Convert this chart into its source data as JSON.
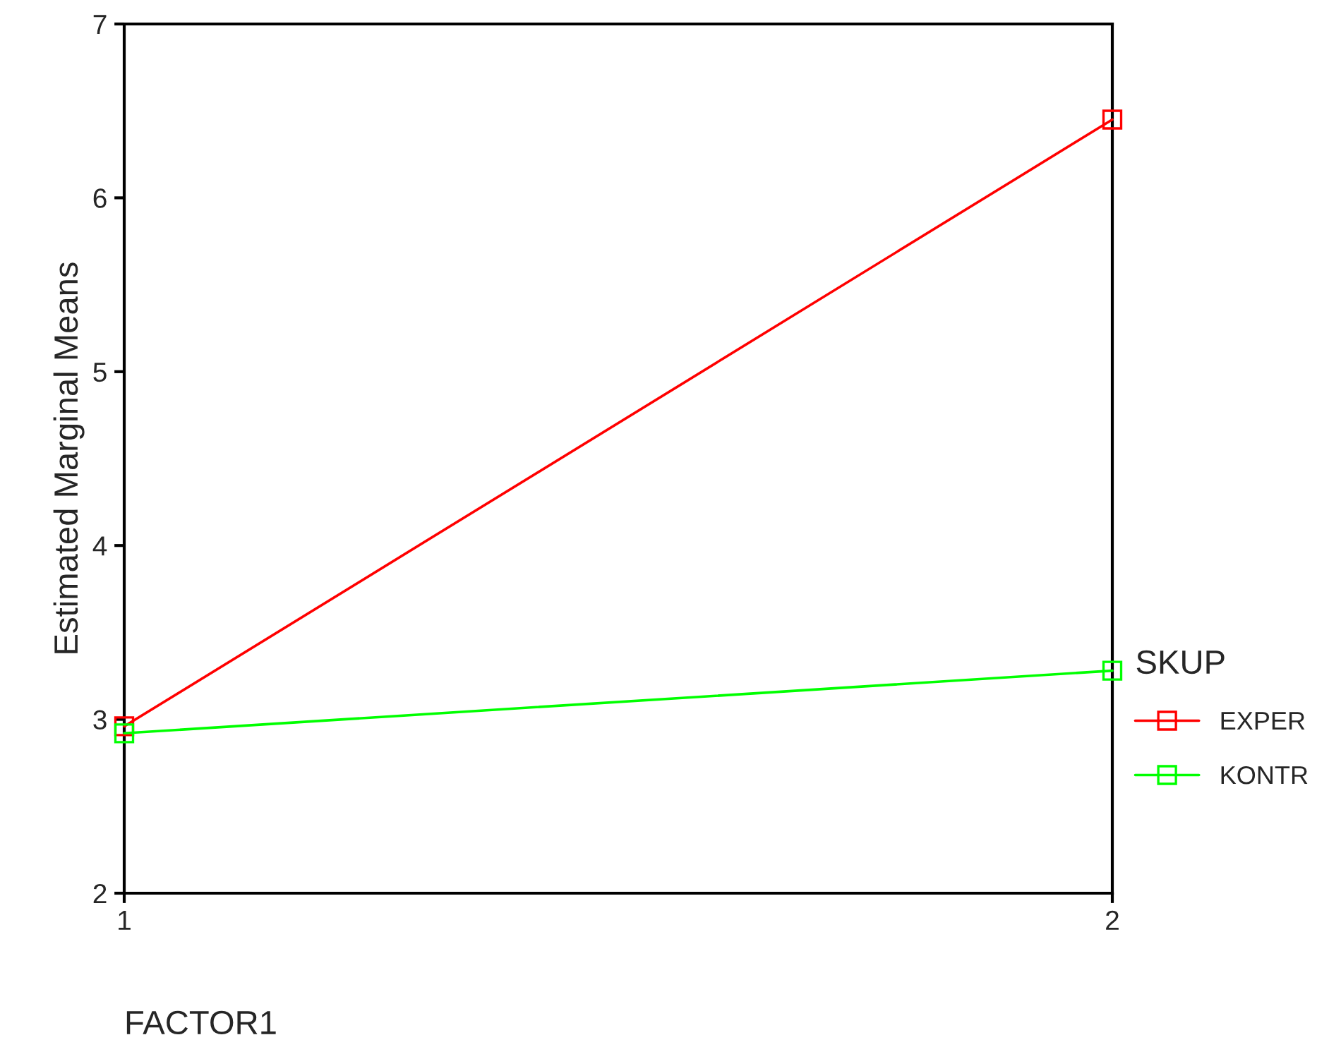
{
  "chart_data": {
    "type": "line",
    "xlabel": "FACTOR1",
    "ylabel": "Estimated Marginal Means",
    "legend_title": "SKUP",
    "x": [
      1,
      2
    ],
    "xlim": [
      1,
      2
    ],
    "xticks": [
      1,
      2
    ],
    "series": [
      {
        "name": "EXPER",
        "color": "#ff0000",
        "values": [
          2.96,
          6.45
        ]
      },
      {
        "name": "KONTR",
        "color": "#00ff00",
        "values": [
          2.92,
          3.28
        ]
      }
    ],
    "ylim": [
      2,
      7
    ],
    "yticks": [
      2,
      3,
      4,
      5,
      6,
      7
    ],
    "grid": false,
    "legend": "right",
    "marker": "square",
    "line_style": "solid"
  }
}
